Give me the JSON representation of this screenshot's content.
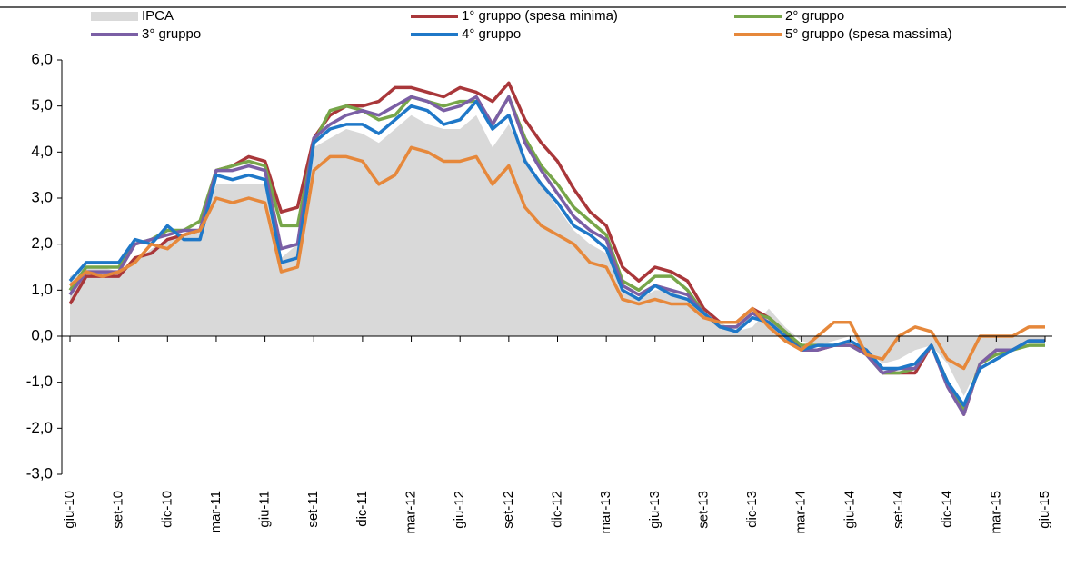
{
  "chart_data": {
    "type": "line",
    "categories": [
      "giu-10",
      null,
      null,
      "set-10",
      null,
      null,
      "dic-10",
      null,
      null,
      "mar-11",
      null,
      null,
      "giu-11",
      null,
      null,
      "set-11",
      null,
      null,
      "dic-11",
      null,
      null,
      "mar-12",
      null,
      null,
      "giu-12",
      null,
      null,
      "set-12",
      null,
      null,
      "dic-12",
      null,
      null,
      "mar-13",
      null,
      null,
      "giu-13",
      null,
      null,
      "set-13",
      null,
      null,
      "dic-13",
      null,
      null,
      "mar-14",
      null,
      null,
      "giu-14",
      null,
      null,
      "set-14",
      null,
      null,
      "dic-14",
      null,
      null,
      "mar-15",
      null,
      null,
      "giu-15"
    ],
    "series": [
      {
        "name": "IPCA",
        "style": "area",
        "color": "#d9d9d9",
        "values": [
          1.3,
          1.5,
          1.5,
          1.4,
          1.6,
          1.9,
          2.1,
          2.2,
          2.3,
          3.3,
          3.3,
          3.3,
          3.3,
          1.7,
          2.0,
          4.1,
          4.3,
          4.5,
          4.4,
          4.2,
          4.5,
          4.8,
          4.6,
          4.5,
          4.5,
          4.8,
          4.1,
          4.6,
          3.9,
          3.3,
          2.8,
          2.3,
          2.0,
          1.8,
          1.0,
          0.8,
          1.0,
          1.0,
          0.8,
          0.6,
          0.3,
          0.1,
          0.2,
          0.6,
          0.2,
          -0.1,
          -0.2,
          -0.1,
          0.0,
          -0.3,
          -0.6,
          -0.5,
          -0.3,
          -0.2,
          -0.6,
          -1.3,
          -0.6,
          -0.4,
          -0.3,
          -0.1,
          -0.1
        ]
      },
      {
        "name": "1° gruppo (spesa minima)",
        "color": "#a9373a",
        "values": [
          0.7,
          1.3,
          1.3,
          1.3,
          1.7,
          1.8,
          2.1,
          2.2,
          2.3,
          3.6,
          3.7,
          3.9,
          3.8,
          2.7,
          2.8,
          4.3,
          4.8,
          5.0,
          5.0,
          5.1,
          5.4,
          5.4,
          5.3,
          5.2,
          5.4,
          5.3,
          5.1,
          5.5,
          4.7,
          4.2,
          3.8,
          3.2,
          2.7,
          2.4,
          1.5,
          1.2,
          1.5,
          1.4,
          1.2,
          0.6,
          0.3,
          0.3,
          0.6,
          0.4,
          0.1,
          -0.3,
          -0.3,
          -0.2,
          -0.2,
          -0.3,
          -0.8,
          -0.8,
          -0.8,
          -0.2,
          -1.0,
          -1.7,
          -0.6,
          -0.3,
          -0.3,
          -0.1,
          -0.1
        ]
      },
      {
        "name": "2° gruppo",
        "color": "#77a64a",
        "values": [
          1.0,
          1.5,
          1.5,
          1.5,
          2.0,
          2.1,
          2.3,
          2.3,
          2.5,
          3.6,
          3.7,
          3.8,
          3.7,
          2.4,
          2.4,
          4.2,
          4.9,
          5.0,
          4.9,
          4.7,
          4.8,
          5.2,
          5.1,
          5.0,
          5.1,
          5.1,
          4.6,
          5.2,
          4.3,
          3.7,
          3.3,
          2.8,
          2.5,
          2.2,
          1.2,
          1.0,
          1.3,
          1.3,
          1.0,
          0.5,
          0.2,
          0.2,
          0.5,
          0.4,
          0.1,
          -0.2,
          -0.2,
          -0.2,
          -0.2,
          -0.4,
          -0.8,
          -0.8,
          -0.7,
          -0.2,
          -1.0,
          -1.6,
          -0.6,
          -0.4,
          -0.3,
          -0.2,
          -0.2
        ]
      },
      {
        "name": "3° gruppo",
        "color": "#7b5fa5",
        "values": [
          0.9,
          1.4,
          1.4,
          1.4,
          2.0,
          2.1,
          2.2,
          2.3,
          2.3,
          3.6,
          3.6,
          3.7,
          3.6,
          1.9,
          2.0,
          4.3,
          4.6,
          4.8,
          4.9,
          4.8,
          5.0,
          5.2,
          5.1,
          4.9,
          5.0,
          5.2,
          4.6,
          5.2,
          4.2,
          3.6,
          3.1,
          2.6,
          2.3,
          2.1,
          1.1,
          0.9,
          1.1,
          1.0,
          0.9,
          0.5,
          0.2,
          0.2,
          0.5,
          0.3,
          0.0,
          -0.3,
          -0.3,
          -0.2,
          -0.2,
          -0.4,
          -0.8,
          -0.7,
          -0.7,
          -0.2,
          -1.1,
          -1.7,
          -0.6,
          -0.3,
          -0.3,
          -0.1,
          -0.1
        ]
      },
      {
        "name": "4° gruppo",
        "color": "#1f78c8",
        "values": [
          1.2,
          1.6,
          1.6,
          1.6,
          2.1,
          2.0,
          2.4,
          2.1,
          2.1,
          3.5,
          3.4,
          3.5,
          3.4,
          1.6,
          1.7,
          4.2,
          4.5,
          4.6,
          4.6,
          4.4,
          4.7,
          5.0,
          4.9,
          4.6,
          4.7,
          5.1,
          4.5,
          4.8,
          3.8,
          3.3,
          2.9,
          2.4,
          2.2,
          1.9,
          1.0,
          0.8,
          1.1,
          0.9,
          0.8,
          0.5,
          0.2,
          0.1,
          0.4,
          0.3,
          0.0,
          -0.3,
          -0.2,
          -0.2,
          -0.1,
          -0.3,
          -0.7,
          -0.7,
          -0.6,
          -0.2,
          -1.0,
          -1.5,
          -0.7,
          -0.5,
          -0.3,
          -0.1,
          -0.1
        ]
      },
      {
        "name": "5° gruppo (spesa massima)",
        "color": "#e6883b",
        "values": [
          1.1,
          1.4,
          1.3,
          1.4,
          1.6,
          2.0,
          1.9,
          2.2,
          2.3,
          3.0,
          2.9,
          3.0,
          2.9,
          1.4,
          1.5,
          3.6,
          3.9,
          3.9,
          3.8,
          3.3,
          3.5,
          4.1,
          4.0,
          3.8,
          3.8,
          3.9,
          3.3,
          3.7,
          2.8,
          2.4,
          2.2,
          2.0,
          1.6,
          1.5,
          0.8,
          0.7,
          0.8,
          0.7,
          0.7,
          0.4,
          0.3,
          0.3,
          0.6,
          0.2,
          -0.1,
          -0.3,
          0.0,
          0.3,
          0.3,
          -0.4,
          -0.5,
          0.0,
          0.2,
          0.1,
          -0.5,
          -0.7,
          0.0,
          0.0,
          0.0,
          0.2,
          0.2
        ]
      }
    ],
    "ylim": [
      -3,
      6
    ],
    "yticks": [
      {
        "value": -3,
        "label": "-3,0"
      },
      {
        "value": -2,
        "label": "-2,0"
      },
      {
        "value": -1,
        "label": "-1,0"
      },
      {
        "value": 0,
        "label": "0,0"
      },
      {
        "value": 1,
        "label": "1,0"
      },
      {
        "value": 2,
        "label": "2,0"
      },
      {
        "value": 3,
        "label": "3,0"
      },
      {
        "value": 4,
        "label": "4,0"
      },
      {
        "value": 5,
        "label": "5,0"
      },
      {
        "value": 6,
        "label": "6,0"
      }
    ],
    "grid": false,
    "legend": "top"
  }
}
